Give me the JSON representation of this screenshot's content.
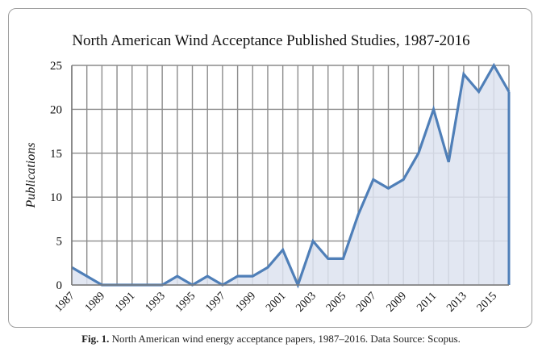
{
  "chart_data": {
    "type": "area",
    "title": "North American Wind Acceptance Published Studies, 1987-2016",
    "xlabel": "",
    "ylabel": "Publications",
    "ylim": [
      0,
      25
    ],
    "xlim": [
      1987,
      2016
    ],
    "y_ticks": [
      0,
      5,
      10,
      15,
      20,
      25
    ],
    "x_tick_labels": [
      "1987",
      "1989",
      "1991",
      "1993",
      "1995",
      "1997",
      "1999",
      "2001",
      "2003",
      "2005",
      "2007",
      "2009",
      "2011",
      "2013",
      "2015"
    ],
    "grid": true,
    "legend": "none",
    "x": [
      1987,
      1988,
      1989,
      1990,
      1991,
      1992,
      1993,
      1994,
      1995,
      1996,
      1997,
      1998,
      1999,
      2000,
      2001,
      2002,
      2003,
      2004,
      2005,
      2006,
      2007,
      2008,
      2009,
      2010,
      2011,
      2012,
      2013,
      2014,
      2015,
      2016
    ],
    "series": [
      {
        "values": [
          2,
          1,
          0,
          0,
          0,
          0,
          0,
          1,
          0,
          1,
          0,
          1,
          1,
          2,
          4,
          0,
          5,
          3,
          3,
          8,
          12,
          11,
          12,
          15,
          20,
          14,
          24,
          22,
          25,
          22
        ]
      }
    ],
    "colors": {
      "line": "#4f7fb8",
      "fill": "#dde3f0",
      "grid": "#8c8c8c",
      "axis": "#7a7a7a"
    }
  },
  "caption": {
    "label": "Fig. 1.",
    "text": " North American wind energy acceptance papers, 1987–2016. Data Source: Scopus."
  }
}
